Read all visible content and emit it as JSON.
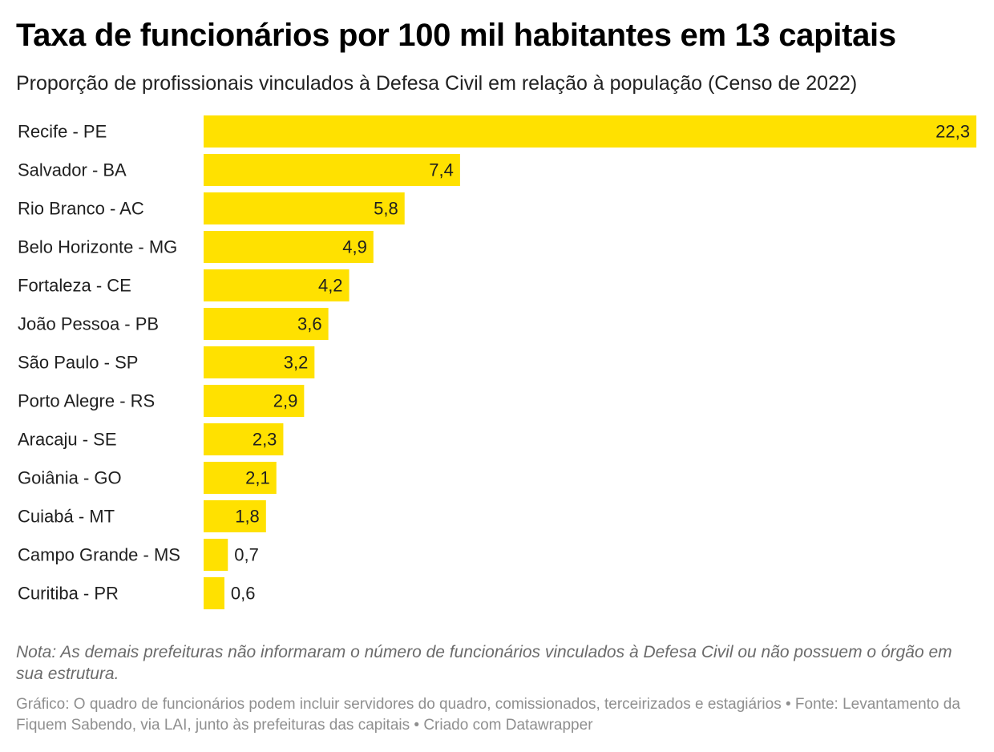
{
  "header": {
    "title": "Taxa de funcionários por 100 mil habitantes em 13 capitais",
    "subtitle": "Proporção de profissionais vinculados à Defesa Civil em relação à população (Censo de 2022)"
  },
  "footer": {
    "note": "Nota: As demais prefeituras não informaram o número de funcionários vinculados à Defesa Civil ou não possuem o órgão em sua estrutura.",
    "source": "Gráfico: O quadro de funcionários podem incluir servidores do quadro, comissionados, terceirizados e estagiários • Fonte: Levantamento da Fiquem Sabendo, via LAI, junto às prefeituras das capitais • Criado com Datawrapper"
  },
  "chart_data": {
    "type": "bar",
    "orientation": "horizontal",
    "categories": [
      "Recife - PE",
      "Salvador - BA",
      "Rio Branco - AC",
      "Belo Horizonte - MG",
      "Fortaleza - CE",
      "João Pessoa - PB",
      "São Paulo - SP",
      "Porto Alegre - RS",
      "Aracaju - SE",
      "Goiânia - GO",
      "Cuiabá - MT",
      "Campo Grande - MS",
      "Curitiba - PR"
    ],
    "values": [
      22.3,
      7.4,
      5.8,
      4.9,
      4.2,
      3.6,
      3.2,
      2.9,
      2.3,
      2.1,
      1.8,
      0.7,
      0.6
    ],
    "value_labels": [
      "22,3",
      "7,4",
      "5,8",
      "4,9",
      "4,2",
      "3,6",
      "3,2",
      "2,9",
      "2,3",
      "2,1",
      "1,8",
      "0,7",
      "0,6"
    ],
    "xlim": [
      0,
      22.3
    ],
    "bar_color": "#ffe100",
    "grid": false,
    "legend": "none"
  }
}
